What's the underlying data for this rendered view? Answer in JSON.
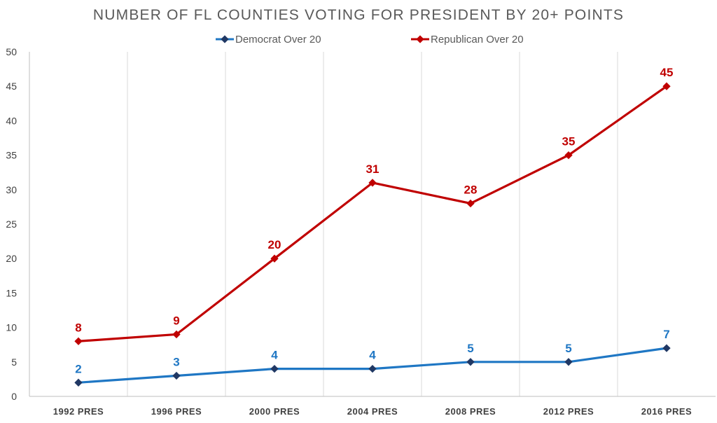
{
  "chart_data": {
    "type": "line",
    "title": "NUMBER OF FL COUNTIES VOTING FOR PRESIDENT BY 20+ POINTS",
    "categories": [
      "1992 PRES",
      "1996 PRES",
      "2000 PRES",
      "2004 PRES",
      "2008 PRES",
      "2012 PRES",
      "2016 PRES"
    ],
    "series": [
      {
        "name": "Democrat Over 20",
        "values": [
          2,
          3,
          4,
          4,
          5,
          5,
          7
        ],
        "color": "#1f77c4",
        "marker_color": "#203864",
        "label_color": "#1f77c4"
      },
      {
        "name": "Republican Over 20",
        "values": [
          8,
          9,
          20,
          31,
          28,
          35,
          45
        ],
        "color": "#c00000",
        "marker_color": "#c00000",
        "label_color": "#c00000"
      }
    ],
    "ylim": [
      0,
      50
    ],
    "yticks": [
      0,
      5,
      10,
      15,
      20,
      25,
      30,
      35,
      40,
      45,
      50
    ],
    "xlabel": "",
    "ylabel": "",
    "legend_position": "top-center",
    "grid": "vertical",
    "data_labels": true
  }
}
